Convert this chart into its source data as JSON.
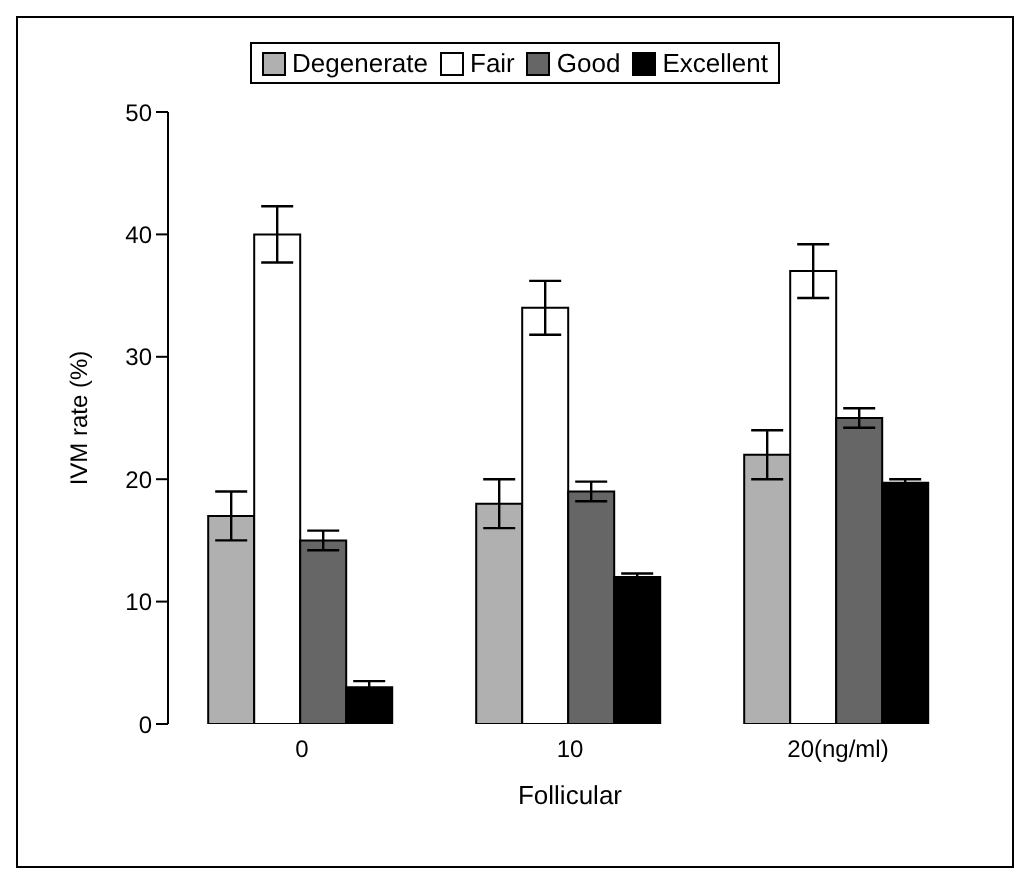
{
  "chart_data": {
    "type": "bar",
    "xlabel": "Follicular",
    "ylabel": "IVM rate (%)",
    "categories": [
      "0",
      "10",
      "20(ng/ml)"
    ],
    "series": [
      {
        "name": "Degenerate",
        "color": "#b0b0b0",
        "values": [
          17,
          18,
          22
        ],
        "errors": [
          2,
          2,
          2
        ]
      },
      {
        "name": "Fair",
        "color": "#ffffff",
        "values": [
          40,
          34,
          37
        ],
        "errors": [
          2.3,
          2.2,
          2.2
        ]
      },
      {
        "name": "Good",
        "color": "#666666",
        "values": [
          15,
          19,
          25
        ],
        "errors": [
          0.8,
          0.8,
          0.8
        ]
      },
      {
        "name": "Excellent",
        "color": "#000000",
        "values": [
          3,
          12,
          19.7
        ],
        "errors": [
          0.5,
          0.3,
          0.3
        ]
      }
    ],
    "ylim": [
      0,
      50
    ],
    "yticks": [
      0,
      10,
      20,
      30,
      40,
      50
    ],
    "legend": "top",
    "grid": false
  }
}
